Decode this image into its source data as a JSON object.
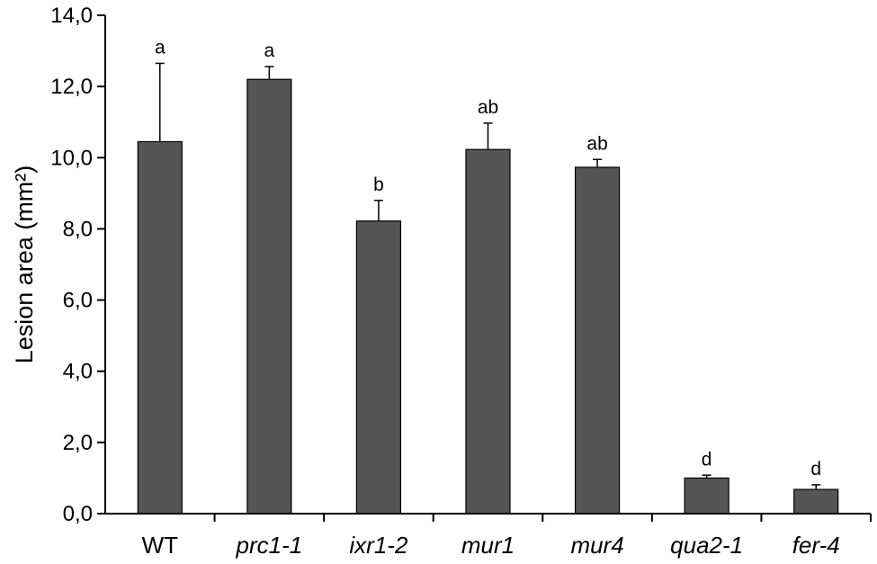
{
  "chart_data": {
    "type": "bar",
    "ylabel": "Lesion area (mm²)",
    "ylim": [
      0,
      14
    ],
    "yticks": [
      "0,0",
      "2,0",
      "4,0",
      "6,0",
      "8,0",
      "10,0",
      "12,0",
      "14,0"
    ],
    "categories": [
      "WT",
      "prc1-1",
      "ixr1-2",
      "mur1",
      "mur4",
      "qua2-1",
      "fer-4"
    ],
    "italic_categories": [
      false,
      true,
      true,
      true,
      true,
      true,
      true
    ],
    "values": [
      10.45,
      12.2,
      8.22,
      10.23,
      9.73,
      1.0,
      0.68
    ],
    "errors": [
      2.2,
      0.36,
      0.58,
      0.74,
      0.22,
      0.08,
      0.13
    ],
    "significance": [
      "a",
      "a",
      "b",
      "ab",
      "ab",
      "d",
      "d"
    ],
    "bar_color": "#555555",
    "grid": false,
    "legend": "none"
  }
}
